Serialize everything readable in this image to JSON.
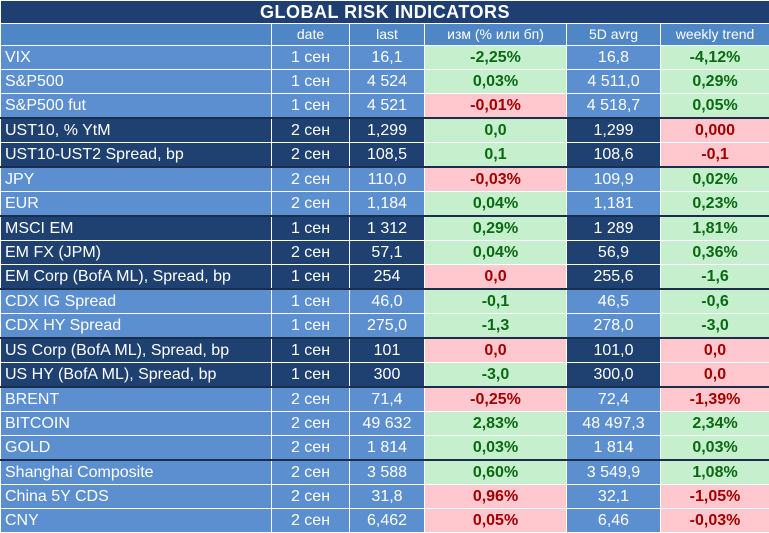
{
  "title": "GLOBAL   RISK   INDICATORS",
  "headers": {
    "name": "",
    "date": "date",
    "last": "last",
    "change": "изм (% или бп)",
    "avg5d": "5D avrg",
    "weekly": "weekly trend"
  },
  "colors": {
    "title_bg": "#1f3f73",
    "light_group_bg": "#5b8fd0",
    "dark_group_bg": "#1f4172",
    "positive_bg": "#c6efce",
    "positive_text": "#0a6a12",
    "negative_bg": "#ffc7ce",
    "negative_text": "#a10000"
  },
  "rows": [
    {
      "name": "VIX",
      "date": "1 сен",
      "last": "16,1",
      "change": "-2,25%",
      "change_tone": "pos",
      "avg5d": "16,8",
      "weekly": "-4,12%",
      "weekly_tone": "pos",
      "group": "light"
    },
    {
      "name": "S&P500",
      "date": "1 сен",
      "last": "4 524",
      "change": "0,03%",
      "change_tone": "pos",
      "avg5d": "4 511,0",
      "weekly": "0,29%",
      "weekly_tone": "pos",
      "group": "light"
    },
    {
      "name": "S&P500 fut",
      "date": "1 сен",
      "last": "4 521",
      "change": "-0,01%",
      "change_tone": "neg",
      "avg5d": "4 518,7",
      "weekly": "0,05%",
      "weekly_tone": "pos",
      "group": "light",
      "sep": true
    },
    {
      "name": "UST10, % YtM",
      "date": "2 сен",
      "last": "1,299",
      "change": "0,0",
      "change_tone": "pos",
      "avg5d": "1,299",
      "weekly": "0,000",
      "weekly_tone": "neg",
      "group": "dark"
    },
    {
      "name": "UST10-UST2 Spread, bp",
      "date": "2 сен",
      "last": "108,5",
      "change": "0,1",
      "change_tone": "pos",
      "avg5d": "108,6",
      "weekly": "-0,1",
      "weekly_tone": "neg",
      "group": "dark",
      "sep": true
    },
    {
      "name": "JPY",
      "date": "2 сен",
      "last": "110,0",
      "change": "-0,03%",
      "change_tone": "neg",
      "avg5d": "109,9",
      "weekly": "0,02%",
      "weekly_tone": "pos",
      "group": "light"
    },
    {
      "name": "EUR",
      "date": "2 сен",
      "last": "1,184",
      "change": "0,04%",
      "change_tone": "pos",
      "avg5d": "1,181",
      "weekly": "0,23%",
      "weekly_tone": "pos",
      "group": "light",
      "sep": true
    },
    {
      "name": "MSCI EM",
      "date": "1 сен",
      "last": "1 312",
      "change": "0,29%",
      "change_tone": "pos",
      "avg5d": "1 289",
      "weekly": "1,81%",
      "weekly_tone": "pos",
      "group": "dark"
    },
    {
      "name": "EM FX (JPM)",
      "date": "2 сен",
      "last": "57,1",
      "change": "0,04%",
      "change_tone": "pos",
      "avg5d": "56,9",
      "weekly": "0,36%",
      "weekly_tone": "pos",
      "group": "dark"
    },
    {
      "name": "EM Corp (BofA ML), Spread, bp",
      "date": "1 сен",
      "last": "254",
      "change": "0,0",
      "change_tone": "neg",
      "avg5d": "255,6",
      "weekly": "-1,6",
      "weekly_tone": "pos",
      "group": "dark",
      "sep": true
    },
    {
      "name": "CDX IG Spread",
      "date": "1 сен",
      "last": "46,0",
      "change": "-0,1",
      "change_tone": "pos",
      "avg5d": "46,5",
      "weekly": "-0,6",
      "weekly_tone": "pos",
      "group": "light"
    },
    {
      "name": "CDX HY Spread",
      "date": "1 сен",
      "last": "275,0",
      "change": "-1,3",
      "change_tone": "pos",
      "avg5d": "278,0",
      "weekly": "-3,0",
      "weekly_tone": "pos",
      "group": "light",
      "sep": true
    },
    {
      "name": "US Corp (BofA ML), Spread, bp",
      "date": "1 сен",
      "last": "101",
      "change": "0,0",
      "change_tone": "neg",
      "avg5d": "101,0",
      "weekly": "0,0",
      "weekly_tone": "neg",
      "group": "dark"
    },
    {
      "name": "US HY (BofA ML), Spread, bp",
      "date": "1 сен",
      "last": "300",
      "change": "-3,0",
      "change_tone": "pos",
      "avg5d": "300,0",
      "weekly": "0,0",
      "weekly_tone": "neg",
      "group": "dark",
      "sep": true
    },
    {
      "name": "BRENT",
      "date": "2 сен",
      "last": "71,4",
      "change": "-0,25%",
      "change_tone": "neg",
      "avg5d": "72,4",
      "weekly": "-1,39%",
      "weekly_tone": "neg",
      "group": "light"
    },
    {
      "name": "BITCOIN",
      "date": "2 сен",
      "last": "49 632",
      "change": "2,83%",
      "change_tone": "pos",
      "avg5d": "48 497,3",
      "weekly": "2,34%",
      "weekly_tone": "pos",
      "group": "light"
    },
    {
      "name": "GOLD",
      "date": "2 сен",
      "last": "1 814",
      "change": "0,03%",
      "change_tone": "pos",
      "avg5d": "1 814",
      "weekly": "0,03%",
      "weekly_tone": "pos",
      "group": "light",
      "sep": true
    },
    {
      "name": "Shanghai Composite",
      "date": "2 сен",
      "last": "3 588",
      "change": "0,60%",
      "change_tone": "pos",
      "avg5d": "3 549,9",
      "weekly": "1,08%",
      "weekly_tone": "pos",
      "group": "light"
    },
    {
      "name": "China 5Y CDS",
      "date": "2 сен",
      "last": "31,8",
      "change": "0,96%",
      "change_tone": "neg",
      "avg5d": "32,1",
      "weekly": "-1,05%",
      "weekly_tone": "neg",
      "group": "light"
    },
    {
      "name": "CNY",
      "date": "2 сен",
      "last": "6,462",
      "change": "0,05%",
      "change_tone": "neg",
      "avg5d": "6,46",
      "weekly": "-0,03%",
      "weekly_tone": "neg",
      "group": "light"
    }
  ]
}
